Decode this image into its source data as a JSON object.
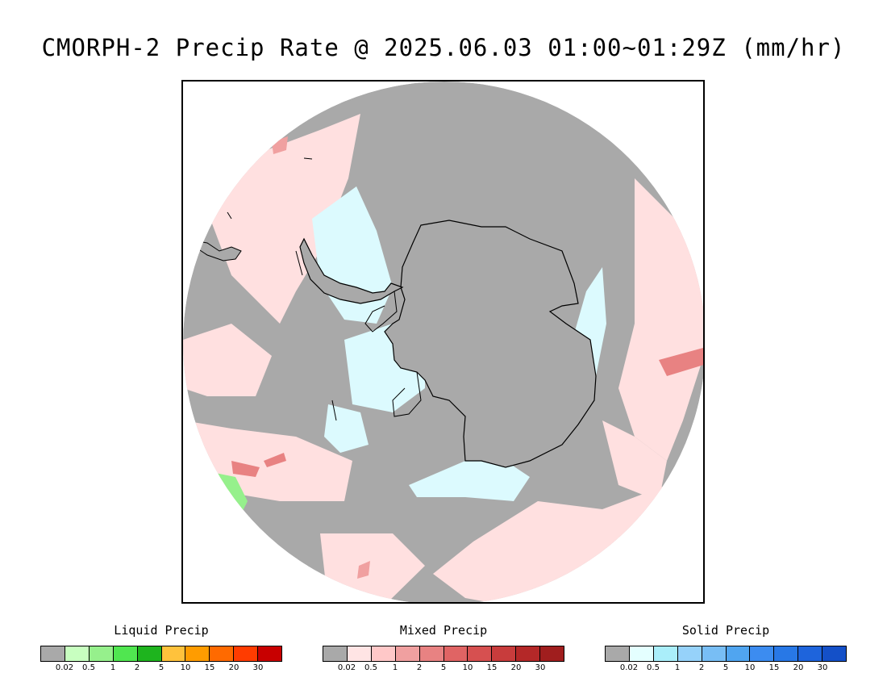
{
  "title": "CMORPH-2 Precip Rate @ 2025.06.03 01:00~01:29Z (mm/hr)",
  "map": {
    "projection": "south-polar-stereographic",
    "ocean_no_precip_color": "#a9a9a9",
    "coastline_color": "#000000"
  },
  "legends": [
    {
      "title": "Liquid Precip",
      "colors": [
        "#a9a9a9",
        "#c8ffc0",
        "#96f08c",
        "#50e650",
        "#1eb41e",
        "#ffc23c",
        "#ff9c00",
        "#ff6a00",
        "#ff3c00",
        "#c80000"
      ],
      "ticks": [
        "0.02",
        "0.5",
        "1",
        "2",
        "5",
        "10",
        "15",
        "20",
        "30"
      ]
    },
    {
      "title": "Mixed Precip",
      "colors": [
        "#a9a9a9",
        "#ffe4e4",
        "#ffc8c8",
        "#f0a0a0",
        "#e88282",
        "#e06464",
        "#d65050",
        "#c83c3c",
        "#b42828",
        "#a01e1e"
      ],
      "ticks": [
        "0.02",
        "0.5",
        "1",
        "2",
        "5",
        "10",
        "15",
        "20",
        "30"
      ]
    },
    {
      "title": "Solid Precip",
      "colors": [
        "#a9a9a9",
        "#e4ffff",
        "#aaeefa",
        "#96d2fa",
        "#78bef5",
        "#50a5f0",
        "#3c8cf0",
        "#2878e6",
        "#1e64dc",
        "#1450c8"
      ],
      "ticks": [
        "0.02",
        "0.5",
        "1",
        "2",
        "5",
        "10",
        "15",
        "20",
        "30"
      ]
    }
  ]
}
